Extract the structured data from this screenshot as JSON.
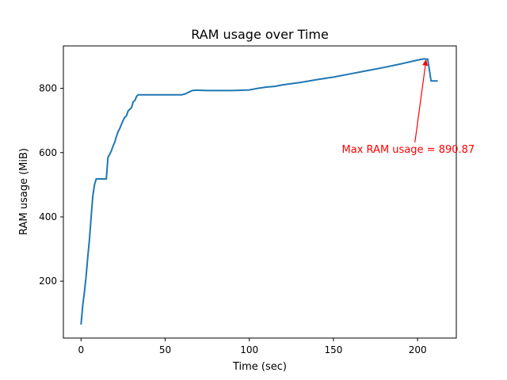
{
  "chart_data": {
    "type": "line",
    "title": "RAM usage over Time",
    "xlabel": "Time (sec)",
    "ylabel": "RAM usage (MiB)",
    "xlim": [
      -10.5,
      223
    ],
    "ylim": [
      23,
      932
    ],
    "xticks": [
      0,
      50,
      100,
      150,
      200
    ],
    "yticks": [
      200,
      400,
      600,
      800
    ],
    "grid": false,
    "series": [
      {
        "color": "#1f77b4",
        "x": [
          0,
          1,
          2,
          3,
          4,
          5,
          6,
          7,
          8,
          9,
          10,
          11,
          12,
          13,
          14,
          15,
          16,
          17,
          18,
          19,
          20,
          21,
          22,
          23,
          24,
          25,
          26,
          27,
          28,
          29,
          30,
          31,
          32,
          33,
          34,
          35,
          36,
          37,
          38,
          39,
          40,
          41,
          42,
          43,
          44,
          45,
          50,
          55,
          60,
          62,
          64,
          66,
          68,
          70,
          75,
          80,
          90,
          95,
          100,
          105,
          110,
          115,
          120,
          130,
          140,
          150,
          160,
          170,
          180,
          190,
          200,
          204,
          205,
          206,
          208,
          212
        ],
        "y": [
          65,
          125,
          165,
          215,
          275,
          330,
          400,
          465,
          500,
          518,
          518,
          518,
          518,
          518,
          518,
          518,
          585,
          595,
          605,
          620,
          632,
          650,
          665,
          675,
          688,
          700,
          710,
          715,
          730,
          735,
          740,
          758,
          762,
          775,
          780,
          780,
          780,
          780,
          780,
          780,
          780,
          780,
          780,
          780,
          780,
          780,
          780,
          780,
          780,
          783,
          788,
          793,
          794,
          794,
          793,
          793,
          793,
          794,
          795,
          800,
          804,
          806,
          811,
          818,
          827,
          835,
          845,
          855,
          865,
          876,
          888,
          892,
          890.87,
          891,
          823,
          823
        ]
      }
    ],
    "annotation": {
      "text": "Max RAM usage = 890.87",
      "color": "#ff0000",
      "point": [
        205,
        890.87
      ],
      "text_position": [
        155,
        600
      ]
    }
  }
}
